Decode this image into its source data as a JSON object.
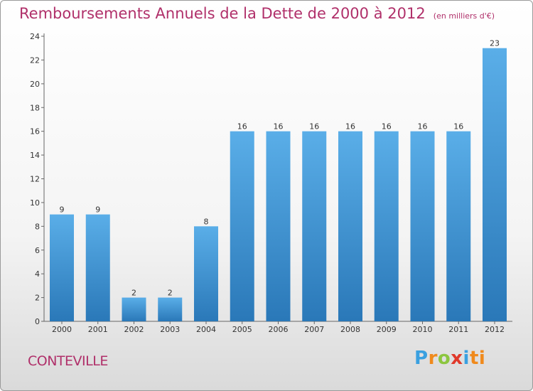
{
  "chart_data": {
    "type": "bar",
    "title": "Remboursements Annuels de la Dette de 2000 à 2012",
    "unit": "(en milliers d'€)",
    "categories": [
      "2000",
      "2001",
      "2002",
      "2003",
      "2004",
      "2005",
      "2006",
      "2007",
      "2008",
      "2009",
      "2010",
      "2011",
      "2012"
    ],
    "values": [
      9,
      9,
      2,
      2,
      8,
      16,
      16,
      16,
      16,
      16,
      16,
      16,
      23
    ],
    "ylim": [
      0,
      24
    ],
    "yticks": [
      0,
      2,
      4,
      6,
      8,
      10,
      12,
      14,
      16,
      18,
      20,
      22,
      24
    ],
    "grid": false,
    "bar_color_top": "#5aaee8",
    "bar_color_bottom": "#2a78b8"
  },
  "footer": {
    "commune": "CONTEVILLE",
    "logo_letters": [
      "P",
      "r",
      "o",
      "x",
      "i",
      "ti"
    ]
  }
}
